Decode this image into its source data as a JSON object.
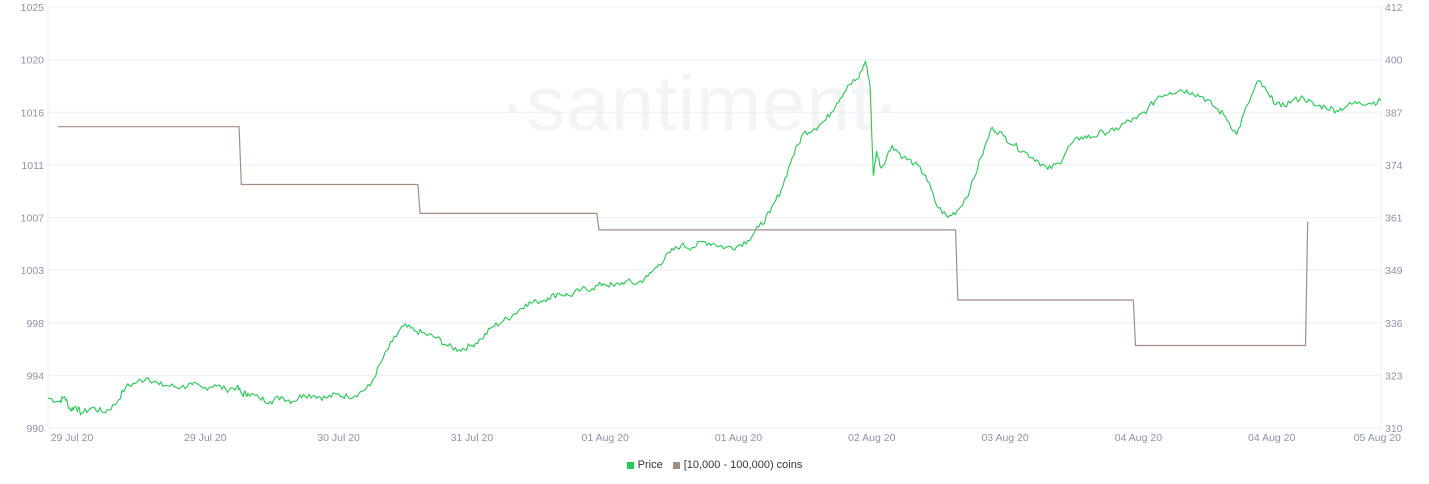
{
  "watermark": "·santiment·",
  "colors": {
    "price": "#26c953",
    "holders": "#a28d82",
    "grid": "#eceef2",
    "axis_text": "#8a93a8"
  },
  "legend": {
    "price_label": "Price",
    "holders_label": "[10,000 - 100,000) coins"
  },
  "chart_data": {
    "type": "line",
    "title": "",
    "xlabel": "",
    "ylabel": "",
    "x_tick_labels": [
      "29 Jul 20",
      "29 Jul 20",
      "30 Jul 20",
      "31 Jul 20",
      "01 Aug 20",
      "01 Aug 20",
      "02 Aug 20",
      "03 Aug 20",
      "04 Aug 20",
      "04 Aug 20",
      "05 Aug 20"
    ],
    "x_tick_hours": [
      0,
      12,
      24,
      36,
      48,
      60,
      72,
      84,
      96,
      108,
      120
    ],
    "xlim_hours": [
      0,
      120
    ],
    "left_axis": {
      "ticks": [
        1025,
        1020,
        1016,
        1011,
        1007,
        1003,
        998,
        994,
        990
      ],
      "ylim": [
        990,
        1025
      ],
      "series": "Price"
    },
    "right_axis": {
      "ticks": [
        412,
        400,
        387,
        374,
        361,
        349,
        336,
        323,
        310
      ],
      "ylim": [
        310,
        412
      ],
      "series": "[10,000 - 100,000) coins"
    },
    "legend_position": "bottom-center",
    "grid": "horizontal",
    "series": [
      {
        "name": "Price",
        "axis": "left",
        "points": [
          [
            0,
            992.5
          ],
          [
            1,
            992.2
          ],
          [
            1.5,
            992.6
          ],
          [
            2,
            991.5
          ],
          [
            2.5,
            991.8
          ],
          [
            3,
            991.2
          ],
          [
            4,
            991.7
          ],
          [
            5,
            991.3
          ],
          [
            6,
            991.9
          ],
          [
            7,
            993.4
          ],
          [
            8,
            993.8
          ],
          [
            9,
            994.2
          ],
          [
            10,
            993.6
          ],
          [
            11,
            993.5
          ],
          [
            12,
            993.4
          ],
          [
            13,
            993.6
          ],
          [
            14,
            993.3
          ],
          [
            15,
            993.6
          ],
          [
            16,
            993.2
          ],
          [
            17,
            993.4
          ],
          [
            17.5,
            992.8
          ],
          [
            18,
            992.9
          ],
          [
            19,
            992.5
          ],
          [
            20,
            992.2
          ],
          [
            21,
            992.6
          ],
          [
            22,
            992.2
          ],
          [
            23,
            992.8
          ],
          [
            24,
            992.7
          ],
          [
            25,
            992.5
          ],
          [
            26,
            992.8
          ],
          [
            27,
            992.6
          ],
          [
            28,
            992.9
          ],
          [
            29,
            993.5
          ],
          [
            30,
            995.5
          ],
          [
            31,
            997.2
          ],
          [
            32,
            998.5
          ],
          [
            33,
            998.1
          ],
          [
            34,
            997.8
          ],
          [
            35,
            997.5
          ],
          [
            36,
            996.8
          ],
          [
            37,
            996.5
          ],
          [
            38,
            996.8
          ],
          [
            39,
            997.4
          ],
          [
            40,
            998.4
          ],
          [
            41,
            998.9
          ],
          [
            42,
            999.5
          ],
          [
            43,
            1000.3
          ],
          [
            44,
            1000.5
          ],
          [
            45,
            1000.8
          ],
          [
            46,
            1001.2
          ],
          [
            47,
            1001.0
          ],
          [
            48,
            1001.5
          ],
          [
            49,
            1001.6
          ],
          [
            50,
            1002.0
          ],
          [
            51,
            1001.8
          ],
          [
            52,
            1002.2
          ],
          [
            53,
            1002.0
          ],
          [
            54,
            1002.6
          ],
          [
            55,
            1003.6
          ],
          [
            56,
            1004.6
          ],
          [
            57,
            1005.2
          ],
          [
            58,
            1005.0
          ],
          [
            59,
            1005.5
          ],
          [
            60,
            1005.3
          ],
          [
            61,
            1005.0
          ],
          [
            62,
            1005.1
          ],
          [
            63,
            1005.6
          ],
          [
            64,
            1006.7
          ],
          [
            65,
            1007.9
          ],
          [
            66,
            1009.8
          ],
          [
            67,
            1012.5
          ],
          [
            68,
            1014.5
          ],
          [
            69,
            1014.9
          ],
          [
            70,
            1015.6
          ],
          [
            71,
            1017.0
          ],
          [
            72,
            1018.5
          ],
          [
            73,
            1019.1
          ],
          [
            73.6,
            1020.5
          ],
          [
            74.0,
            1018.5
          ],
          [
            74.3,
            1011.0
          ],
          [
            74.6,
            1013.0
          ],
          [
            75,
            1011.6
          ],
          [
            76,
            1013.5
          ],
          [
            77,
            1012.5
          ],
          [
            78,
            1012.0
          ],
          [
            79,
            1011.0
          ],
          [
            80,
            1008.5
          ],
          [
            81,
            1007.5
          ],
          [
            82,
            1008.2
          ],
          [
            83,
            1009.8
          ],
          [
            84,
            1012.5
          ],
          [
            85,
            1015.0
          ],
          [
            86,
            1014.3
          ],
          [
            87,
            1013.5
          ],
          [
            88,
            1012.9
          ],
          [
            89,
            1012.3
          ],
          [
            90,
            1011.5
          ],
          [
            91,
            1012.0
          ],
          [
            92,
            1013.5
          ],
          [
            93,
            1014.2
          ],
          [
            94,
            1014.2
          ],
          [
            95,
            1014.6
          ],
          [
            96,
            1014.7
          ],
          [
            97,
            1015.4
          ],
          [
            98,
            1015.7
          ],
          [
            99,
            1016.5
          ],
          [
            100,
            1017.6
          ],
          [
            101,
            1017.9
          ],
          [
            102,
            1018.1
          ],
          [
            103,
            1017.9
          ],
          [
            104,
            1017.5
          ],
          [
            105,
            1016.7
          ],
          [
            106,
            1015.9
          ],
          [
            107,
            1014.4
          ],
          [
            108,
            1016.9
          ],
          [
            109,
            1018.9
          ],
          [
            110,
            1017.5
          ],
          [
            111,
            1016.7
          ],
          [
            112,
            1017.2
          ],
          [
            113,
            1017.5
          ],
          [
            114,
            1016.8
          ],
          [
            115,
            1016.7
          ],
          [
            116,
            1016.4
          ],
          [
            117,
            1016.8
          ],
          [
            118,
            1017.1
          ],
          [
            119,
            1017.0
          ],
          [
            120,
            1017.2
          ]
        ]
      },
      {
        "name": "[10,000 - 100,000) coins",
        "axis": "right",
        "points": [
          [
            0.9,
            383
          ],
          [
            17.2,
            383
          ],
          [
            17.4,
            369
          ],
          [
            33.3,
            369
          ],
          [
            33.5,
            362
          ],
          [
            49.4,
            362
          ],
          [
            49.6,
            358
          ],
          [
            81.7,
            358
          ],
          [
            81.9,
            341
          ],
          [
            97.7,
            341
          ],
          [
            97.9,
            330
          ],
          [
            113.2,
            330
          ],
          [
            113.4,
            360
          ]
        ]
      }
    ]
  }
}
